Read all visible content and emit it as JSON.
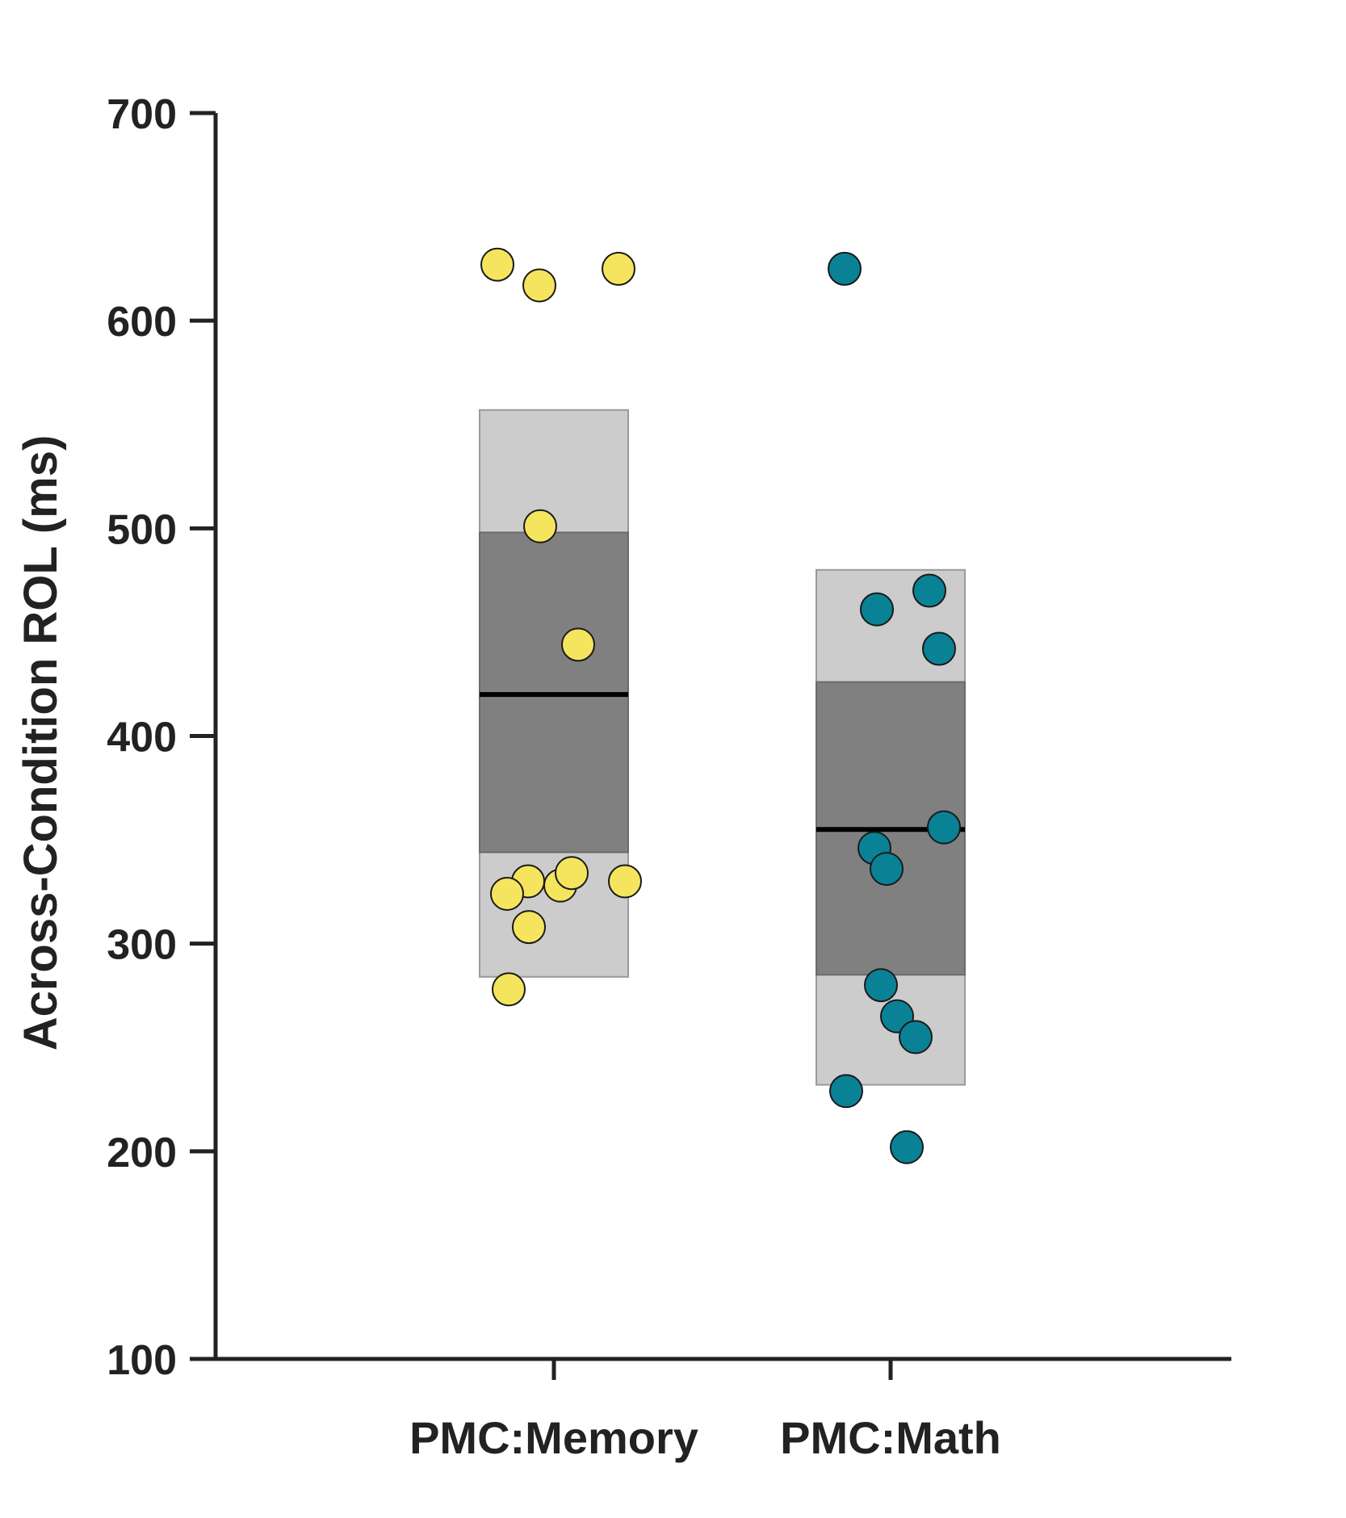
{
  "chart_data": {
    "type": "scatter",
    "ylabel": "Across-Condition ROL (ms)",
    "xlabel": "",
    "ylim": [
      100,
      700
    ],
    "yticks": [
      100,
      200,
      300,
      400,
      500,
      600,
      700
    ],
    "grid": false,
    "categories": [
      "PMC:Memory",
      "PMC:Math"
    ],
    "series": [
      {
        "color": "#F5E55E",
        "mean": 420,
        "sd_box": [
          344,
          498
        ],
        "ci_box": [
          284,
          557
        ],
        "points": [
          627,
          617,
          625,
          501,
          444,
          330,
          324,
          308,
          278,
          328,
          334,
          330
        ]
      },
      {
        "color": "#0A8296",
        "mean": 355,
        "sd_box": [
          285,
          426
        ],
        "ci_box": [
          232,
          480
        ],
        "points": [
          625,
          470,
          461,
          442,
          356,
          346,
          336,
          280,
          265,
          255,
          229,
          202
        ]
      }
    ],
    "colors": {
      "inner_box": "#808080",
      "outer_box": "#CCCCCC",
      "axis": "#222222",
      "mean_line": "#000000"
    }
  }
}
